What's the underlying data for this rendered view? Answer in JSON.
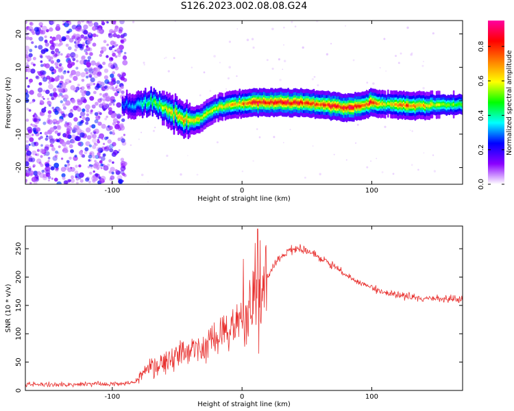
{
  "title": "S126.2023.002.08.08.G24",
  "chart_data": [
    {
      "type": "heatmap",
      "xlabel": "Height of straight line (km)",
      "ylabel": "Frequency (Hz)",
      "xlim": [
        -167,
        170
      ],
      "ylim": [
        -25,
        24
      ],
      "x_ticks": [
        -100,
        0,
        100
      ],
      "y_ticks": [
        -20,
        -10,
        0,
        10,
        20
      ],
      "colorbar": {
        "label": "Normalized spectral amplitude",
        "range": [
          0,
          0.95
        ],
        "ticks": [
          "0.0",
          "0.2",
          "0.4",
          "0.6",
          "0.8"
        ],
        "colors": [
          "#ffffff",
          "#8a00ff",
          "#0000ff",
          "#00ffff",
          "#00ff00",
          "#ffff00",
          "#ff8000",
          "#ff0000",
          "#ff00a0"
        ]
      },
      "noise_region_x": [
        -167,
        -90
      ],
      "ridge": {
        "x": [
          -92,
          -85,
          -78,
          -70,
          -62,
          -55,
          -48,
          -40,
          -33,
          -25,
          -18,
          -12,
          -5,
          0,
          10,
          30,
          50,
          70,
          80,
          85,
          92,
          100,
          110,
          130,
          150,
          170
        ],
        "frequency": [
          -1.5,
          -1.5,
          -1,
          -0.5,
          -1.5,
          -3.5,
          -5,
          -6,
          -5.5,
          -3.5,
          -2,
          -1.5,
          -1,
          -1,
          -0.5,
          -0.5,
          -0.8,
          -1.5,
          -2,
          -2,
          -1.5,
          -0.5,
          -1,
          -1.5,
          -1.2,
          -1.2
        ],
        "amplitude": [
          0.3,
          0.35,
          0.4,
          0.5,
          0.55,
          0.7,
          0.75,
          0.7,
          0.65,
          0.6,
          0.6,
          0.65,
          0.7,
          0.75,
          0.9,
          0.92,
          0.8,
          0.85,
          0.88,
          0.92,
          0.75,
          0.9,
          0.6,
          0.8,
          0.6,
          0.5
        ]
      }
    },
    {
      "type": "line",
      "xlabel": "Height of straight line (km)",
      "ylabel": "SNR (10 * v/v)",
      "xlim": [
        -167,
        170
      ],
      "ylim": [
        0,
        290
      ],
      "x_ticks": [
        -100,
        0,
        100
      ],
      "y_ticks": [
        0,
        50,
        100,
        150,
        200,
        250
      ],
      "series": [
        {
          "color": "#e8312f",
          "trend_x": [
            -167,
            -120,
            -90,
            -82,
            -75,
            -60,
            -45,
            -30,
            -15,
            -5,
            5,
            12,
            18,
            25,
            35,
            45,
            55,
            70,
            90,
            110,
            140,
            170
          ],
          "trend_y": [
            10,
            11,
            12,
            15,
            35,
            50,
            65,
            80,
            95,
            115,
            140,
            160,
            190,
            225,
            245,
            250,
            240,
            220,
            190,
            172,
            162,
            162
          ],
          "spikes": [
            {
              "x": 12,
              "y": 285
            },
            {
              "x": 13,
              "y": 65
            },
            {
              "x": 10,
              "y": 260
            },
            {
              "x": 8,
              "y": 120
            },
            {
              "x": 1,
              "y": 232
            },
            {
              "x": 14,
              "y": 265
            }
          ]
        }
      ]
    }
  ]
}
